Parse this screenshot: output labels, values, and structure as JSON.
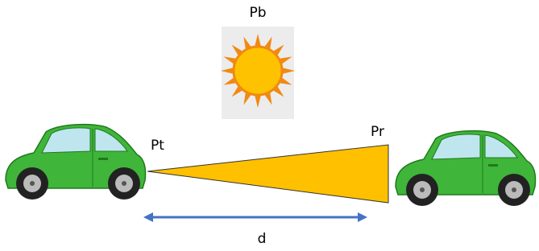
{
  "labels": {
    "sun": "Pb",
    "transmitter": "Pt",
    "receiver": "Pr",
    "distance": "d"
  }
}
